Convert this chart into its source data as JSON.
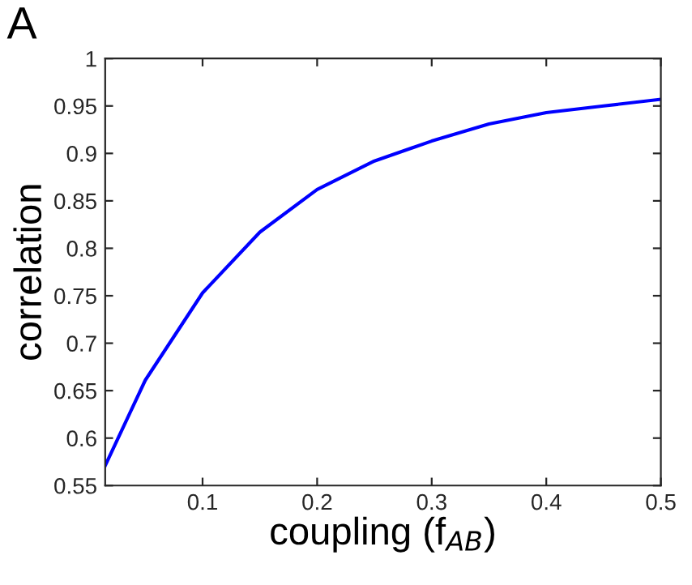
{
  "chart_data": {
    "type": "line",
    "xlabel": "coupling (f$_{AB}$)",
    "ylabel": "correlation",
    "annotations": [
      "A"
    ],
    "x": [
      0.015,
      0.05,
      0.1,
      0.15,
      0.2,
      0.25,
      0.3,
      0.35,
      0.4,
      0.45,
      0.5
    ],
    "series": [
      {
        "color": "#0000ff",
        "values": [
          0.571,
          0.661,
          0.753,
          0.817,
          0.862,
          0.892,
          0.913,
          0.931,
          0.943,
          0.95,
          0.957
        ]
      }
    ],
    "xlim": [
      0.015,
      0.5
    ],
    "ylim": [
      0.55,
      1
    ],
    "xticks": [
      0.1,
      0.2,
      0.3,
      0.4,
      0.5
    ],
    "yticks": [
      0.55,
      0.6,
      0.65,
      0.7,
      0.75,
      0.8,
      0.85,
      0.9,
      0.95,
      1
    ],
    "grid": false
  }
}
